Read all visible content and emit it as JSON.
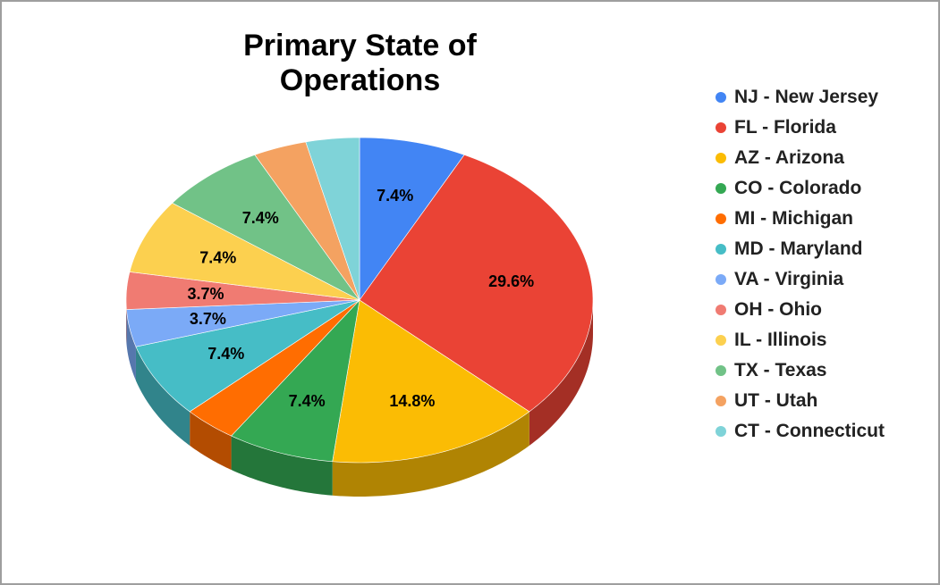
{
  "chart_data": {
    "type": "pie",
    "title": "Primary State of Operations",
    "legend_position": "right",
    "three_d": true,
    "slices": [
      {
        "name": "NJ - New Jersey",
        "value": 7.4,
        "label": "7.4%",
        "color": "#4285f4"
      },
      {
        "name": "FL - Florida",
        "value": 29.6,
        "label": "29.6%",
        "color": "#ea4335"
      },
      {
        "name": "AZ - Arizona",
        "value": 14.8,
        "label": "14.8%",
        "color": "#fbbc04"
      },
      {
        "name": "CO - Colorado",
        "value": 7.4,
        "label": "7.4%",
        "color": "#34a853"
      },
      {
        "name": "MI - Michigan",
        "value": 3.7,
        "label": "",
        "color": "#ff6d01"
      },
      {
        "name": "MD - Maryland",
        "value": 7.4,
        "label": "7.4%",
        "color": "#46bdc6"
      },
      {
        "name": "VA - Virginia",
        "value": 3.7,
        "label": "3.7%",
        "color": "#7baaf7"
      },
      {
        "name": "OH - Ohio",
        "value": 3.7,
        "label": "3.7%",
        "color": "#f07b72"
      },
      {
        "name": "IL - Illinois",
        "value": 7.4,
        "label": "7.4%",
        "color": "#fcd04f"
      },
      {
        "name": "TX - Texas",
        "value": 7.4,
        "label": "7.4%",
        "color": "#71c287"
      },
      {
        "name": "UT - Utah",
        "value": 3.7,
        "label": "",
        "color": "#f4a261"
      },
      {
        "name": "CT - Connecticut",
        "value": 3.7,
        "label": "",
        "color": "#7fd3d8"
      }
    ]
  }
}
